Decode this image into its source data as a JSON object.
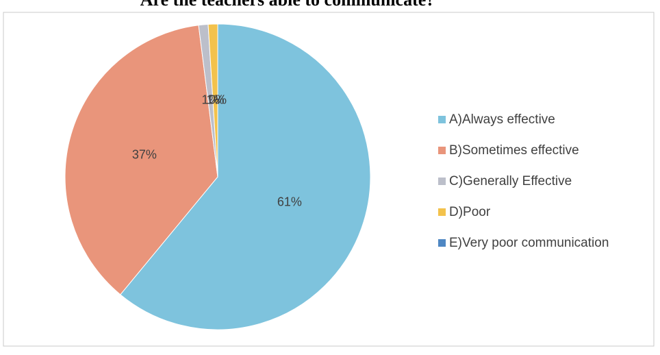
{
  "chart_data": {
    "type": "pie",
    "title": "Are the teachers able to communicate?",
    "categories": [
      "A)Always effective",
      "B)Sometimes effective",
      "C)Generally Effective",
      "D)Poor",
      "E)Very poor communication"
    ],
    "values": [
      61,
      37,
      1,
      1,
      0
    ],
    "value_labels": [
      "61%",
      "37%",
      "1%",
      "1%",
      "0%"
    ],
    "colors": [
      "#7ec3dd",
      "#e9957b",
      "#bcbfca",
      "#f3c24c",
      "#4f87c3"
    ],
    "legend": "right"
  }
}
